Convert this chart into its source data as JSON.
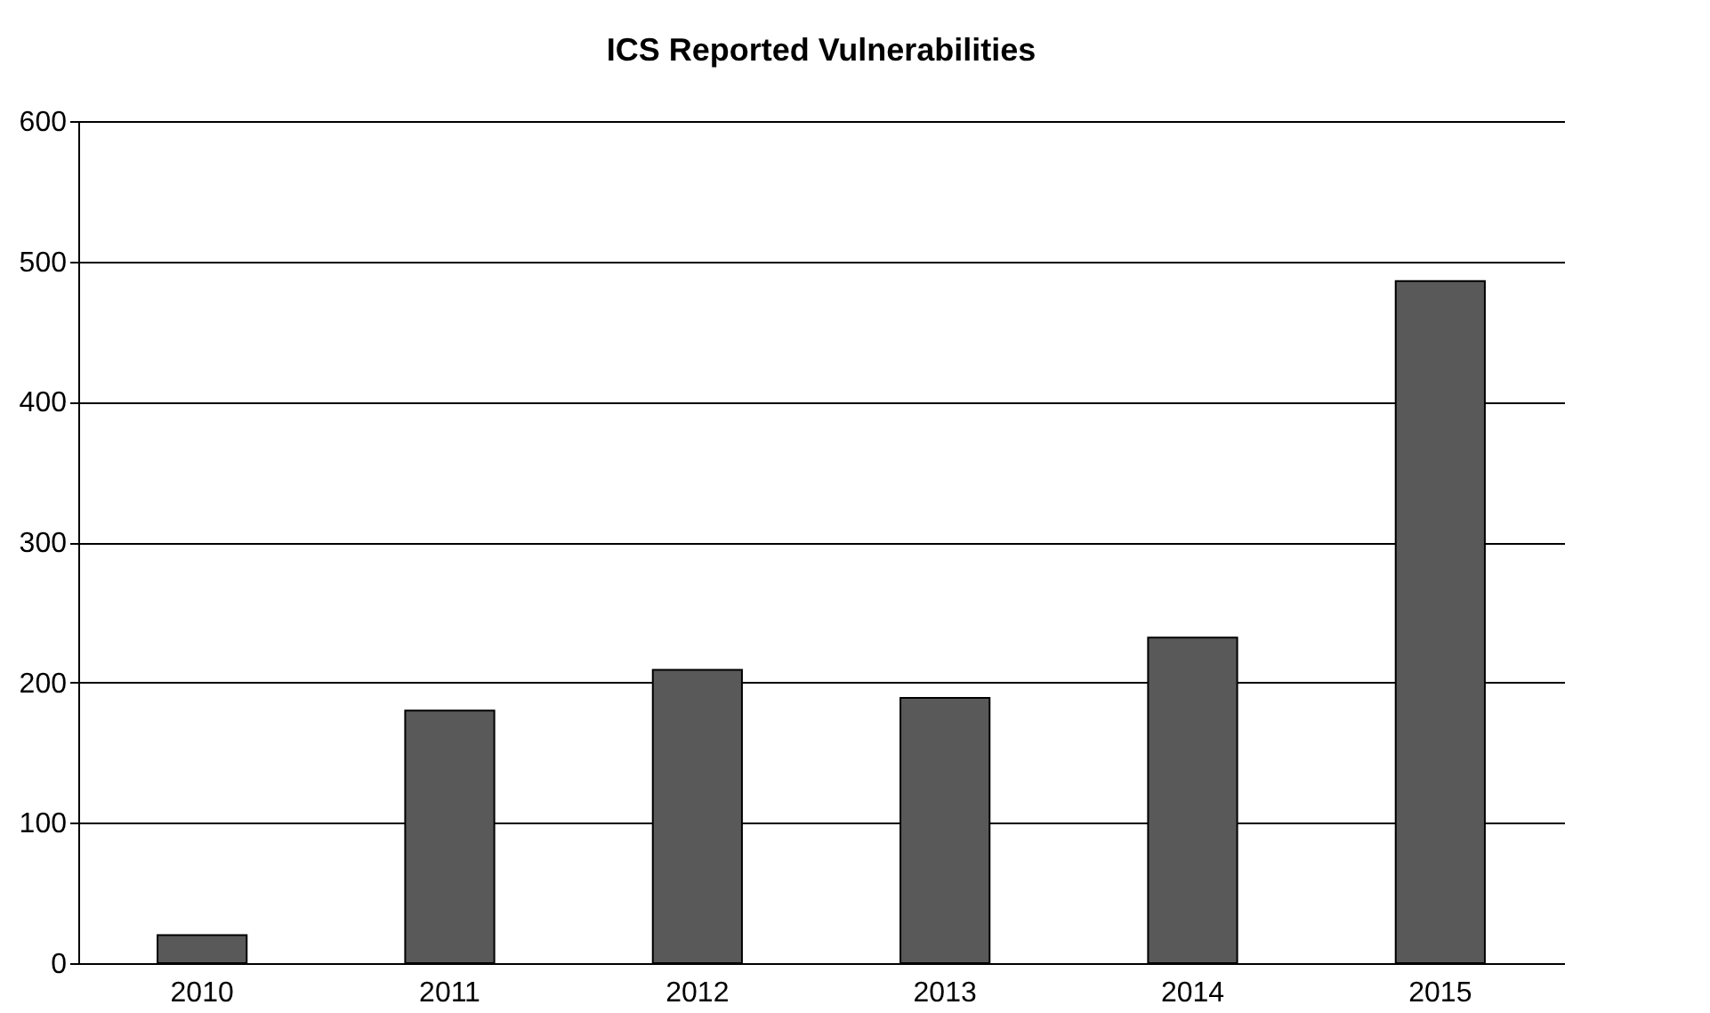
{
  "chart_data": {
    "type": "bar",
    "title": "ICS Reported Vulnerabilities",
    "categories": [
      "2010",
      "2011",
      "2012",
      "2013",
      "2014",
      "2015"
    ],
    "values": [
      20,
      180,
      209,
      189,
      232,
      486
    ],
    "color": "#595959",
    "ylim": [
      0,
      600
    ],
    "yticks": [
      0,
      100,
      200,
      300,
      400,
      500,
      600
    ],
    "grid": "y"
  }
}
